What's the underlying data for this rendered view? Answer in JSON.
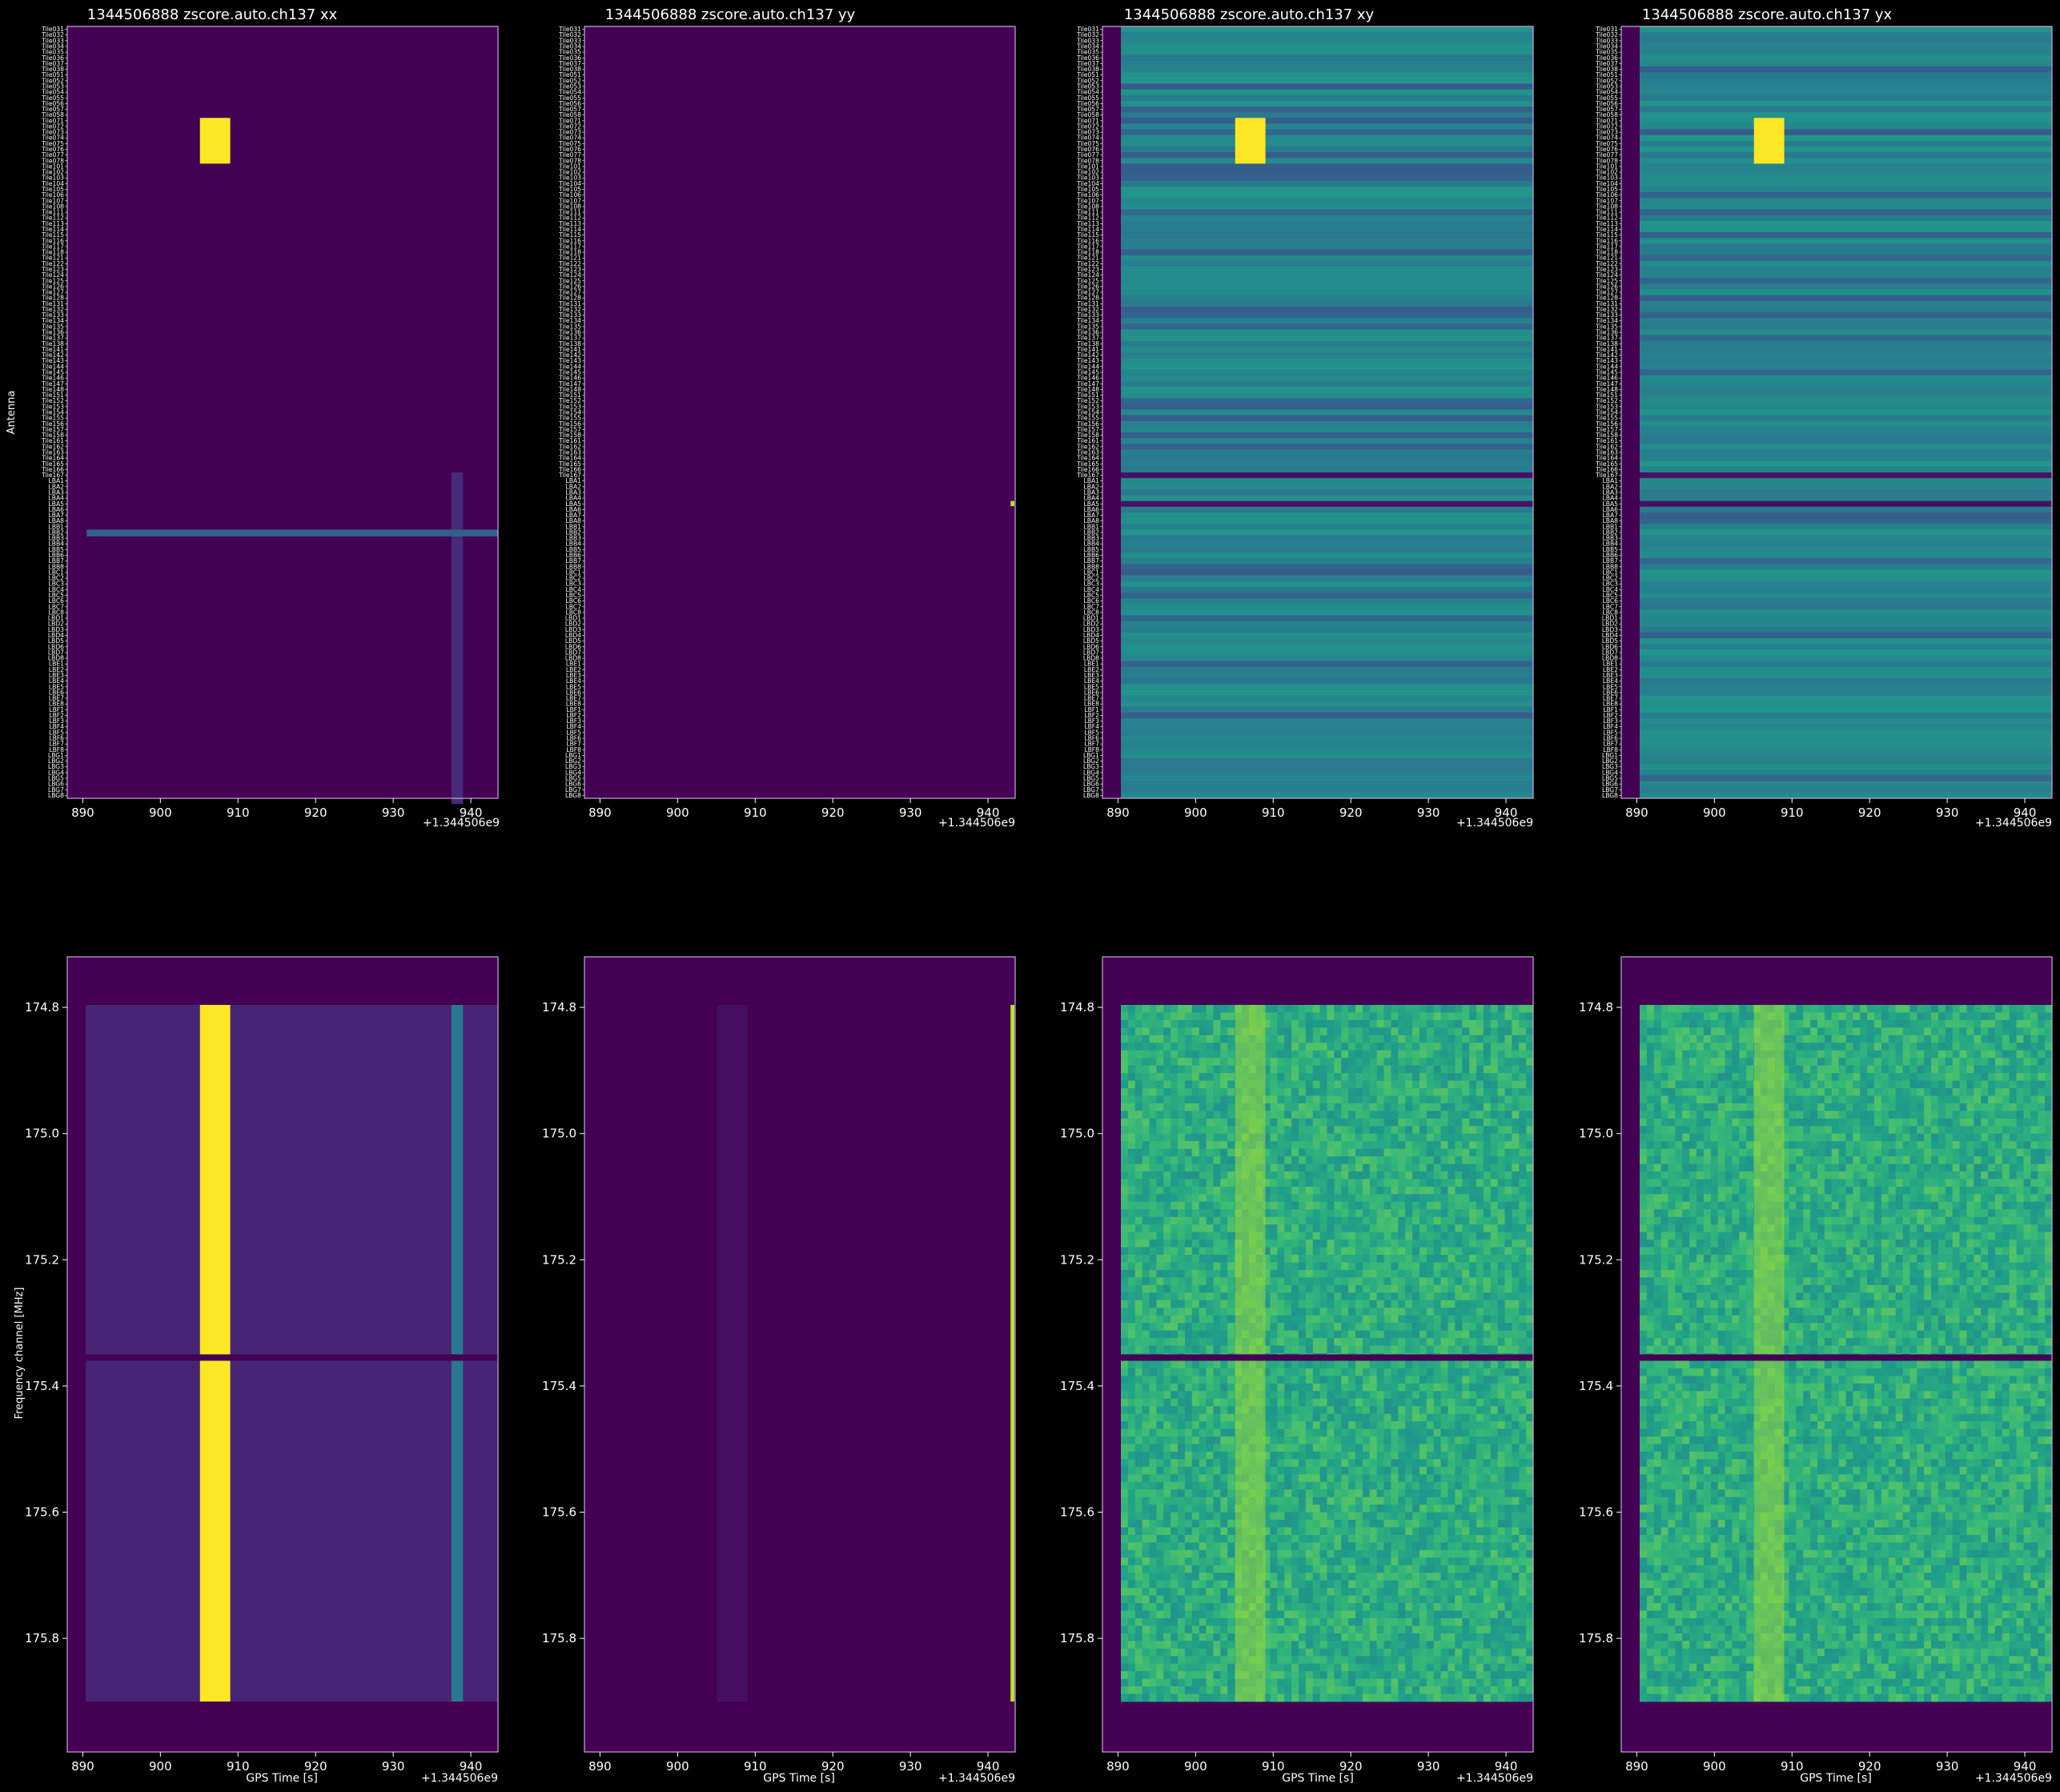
{
  "colors": {
    "background": "#000000",
    "foreground": "#ffffff",
    "spine": "#c8a8e0",
    "viridis_low": "#440154",
    "viridis_mid": "#21918c",
    "viridis_high": "#fde725"
  },
  "chart_data": [
    {
      "type": "heatmap",
      "title": "1344506888 zscore.auto.ch137 xx",
      "ylabel": "Antenna",
      "xlabel": "",
      "x_offset_label": "+1.344506e9",
      "x_ticks": [
        890,
        900,
        910,
        920,
        930,
        940
      ],
      "xlim": [
        888,
        943.5
      ],
      "y_tick_labels": [
        "Tile031",
        "Tile032",
        "Tile033",
        "Tile034",
        "Tile035",
        "Tile036",
        "Tile037",
        "Tile038",
        "Tile051",
        "Tile052",
        "Tile053",
        "Tile054",
        "Tile055",
        "Tile056",
        "Tile057",
        "Tile058",
        "Tile071",
        "Tile072",
        "Tile073",
        "Tile074",
        "Tile075",
        "Tile076",
        "Tile077",
        "Tile078",
        "Tile101",
        "Tile102",
        "Tile103",
        "Tile104",
        "Tile105",
        "Tile106",
        "Tile107",
        "Tile108",
        "Tile111",
        "Tile112",
        "Tile113",
        "Tile114",
        "Tile115",
        "Tile116",
        "Tile117",
        "Tile118",
        "Tile121",
        "Tile122",
        "Tile123",
        "Tile124",
        "Tile125",
        "Tile126",
        "Tile127",
        "Tile128",
        "Tile131",
        "Tile132",
        "Tile133",
        "Tile134",
        "Tile135",
        "Tile136",
        "Tile137",
        "Tile138",
        "Tile141",
        "Tile142",
        "Tile143",
        "Tile144",
        "Tile145",
        "Tile146",
        "Tile147",
        "Tile148",
        "Tile151",
        "Tile152",
        "Tile153",
        "Tile154",
        "Tile155",
        "Tile156",
        "Tile157",
        "Tile158",
        "Tile161",
        "Tile162",
        "Tile163",
        "Tile164",
        "Tile165",
        "Tile166",
        "Tile167",
        "LBA1",
        "LBA2",
        "LBA3",
        "LBA4",
        "LBA5",
        "LBA6",
        "LBA7",
        "LBA8",
        "LBB1",
        "LBB2",
        "LBB3",
        "LBB4",
        "LBB5",
        "LBB6",
        "LBB7",
        "LBB8",
        "LBC1",
        "LBC2",
        "LBC3",
        "LBC4",
        "LBC5",
        "LBC6",
        "LBC7",
        "LBC8",
        "LBD1",
        "LBD2",
        "LBD3",
        "LBD4",
        "LBD5",
        "LBD6",
        "LBD7",
        "LBD8",
        "LBE1",
        "LBE2",
        "LBE3",
        "LBE4",
        "LBE5",
        "LBE6",
        "LBE7",
        "LBE8",
        "LBF1",
        "LBF2",
        "LBF3",
        "LBF4",
        "LBF5",
        "LBF6",
        "LBF7",
        "LBF8",
        "LBG1",
        "LBG2",
        "LBG3",
        "LBG4",
        "LBG5",
        "LBG6",
        "LBG7",
        "LBG8"
      ],
      "colormap": "viridis",
      "features": [
        {
          "kind": "block",
          "x_range": [
            905.1,
            909
          ],
          "row_range": [
            16,
            24
          ],
          "level": 1.0
        },
        {
          "kind": "column_band",
          "x_range": [
            937.5,
            939
          ],
          "row_range": [
            78,
            136
          ],
          "level": 0.12
        },
        {
          "kind": "row_band",
          "row": 88,
          "x_range": [
            890.5,
            943.5
          ],
          "level": 0.3
        }
      ]
    },
    {
      "type": "heatmap",
      "title": "1344506888 zscore.auto.ch137 yy",
      "xlabel": "",
      "x_offset_label": "+1.344506e9",
      "x_ticks": [
        890,
        900,
        910,
        920,
        930,
        940
      ],
      "xlim": [
        888,
        943.5
      ],
      "colormap": "viridis",
      "features": [
        {
          "kind": "cell",
          "x_range": [
            942.9,
            943.4
          ],
          "row": 83,
          "level": 0.9
        }
      ]
    },
    {
      "type": "heatmap",
      "title": "1344506888 zscore.auto.ch137 xy",
      "xlabel": "",
      "x_offset_label": "+1.344506e9",
      "x_ticks": [
        890,
        900,
        910,
        920,
        930,
        940
      ],
      "xlim": [
        888,
        943.5
      ],
      "colormap": "viridis",
      "features": [
        {
          "kind": "block",
          "x_range": [
            905.1,
            909
          ],
          "row_range": [
            16,
            24
          ],
          "level": 1.0
        },
        {
          "kind": "dark_rows",
          "rows": [
            78,
            83
          ]
        }
      ]
    },
    {
      "type": "heatmap",
      "title": "1344506888 zscore.auto.ch137 yx",
      "xlabel": "",
      "x_offset_label": "+1.344506e9",
      "x_ticks": [
        890,
        900,
        910,
        920,
        930,
        940
      ],
      "xlim": [
        888,
        943.5
      ],
      "colormap": "viridis",
      "features": [
        {
          "kind": "block",
          "x_range": [
            905.1,
            909
          ],
          "row_range": [
            16,
            24
          ],
          "level": 1.0
        },
        {
          "kind": "dark_rows",
          "rows": [
            78,
            83
          ]
        }
      ]
    },
    {
      "type": "heatmap",
      "title": "",
      "xlabel": "GPS Time [s]",
      "ylabel": "Frequency channel [MHz]",
      "x_offset_label": "+1.344506e9",
      "x_ticks": [
        890,
        900,
        910,
        920,
        930,
        940
      ],
      "xlim": [
        888,
        943.5
      ],
      "ylim": [
        174.72,
        175.98
      ],
      "y_ticks": [
        "174.8",
        "175.0",
        "175.2",
        "175.4",
        "175.6",
        "175.8"
      ],
      "colormap": "viridis",
      "features": [
        {
          "kind": "column_band",
          "x_range": [
            905.1,
            909
          ],
          "level": 1.0
        },
        {
          "kind": "column_band",
          "x_range": [
            937.5,
            939
          ],
          "level": 0.4
        },
        {
          "kind": "dark_row",
          "freq": 175.355
        }
      ]
    },
    {
      "type": "heatmap",
      "title": "",
      "xlabel": "GPS Time [s]",
      "x_offset_label": "+1.344506e9",
      "x_ticks": [
        890,
        900,
        910,
        920,
        930,
        940
      ],
      "xlim": [
        888,
        943.5
      ],
      "ylim": [
        174.72,
        175.98
      ],
      "y_ticks": [
        "174.8",
        "175.0",
        "175.2",
        "175.4",
        "175.6",
        "175.8"
      ],
      "colormap": "viridis",
      "features": [
        {
          "kind": "column_band",
          "x_range": [
            905.1,
            909
          ],
          "level": 0.04
        },
        {
          "kind": "column_band",
          "x_range": [
            942.9,
            943.4
          ],
          "level": 0.9
        }
      ]
    },
    {
      "type": "heatmap",
      "title": "",
      "xlabel": "GPS Time [s]",
      "x_offset_label": "+1.344506e9",
      "x_ticks": [
        890,
        900,
        910,
        920,
        930,
        940
      ],
      "xlim": [
        888,
        943.5
      ],
      "ylim": [
        174.72,
        175.98
      ],
      "y_ticks": [
        "174.8",
        "175.0",
        "175.2",
        "175.4",
        "175.6",
        "175.8"
      ],
      "colormap": "viridis",
      "features": [
        {
          "kind": "column_band",
          "x_range": [
            905.1,
            909
          ],
          "level": 0.85
        },
        {
          "kind": "dark_row",
          "freq": 175.355
        }
      ]
    },
    {
      "type": "heatmap",
      "title": "",
      "xlabel": "GPS Time [s]",
      "x_offset_label": "+1.344506e9",
      "x_ticks": [
        890,
        900,
        910,
        920,
        930,
        940
      ],
      "xlim": [
        888,
        943.5
      ],
      "ylim": [
        174.72,
        175.98
      ],
      "y_ticks": [
        "174.8",
        "175.0",
        "175.2",
        "175.4",
        "175.6",
        "175.8"
      ],
      "colormap": "viridis",
      "features": [
        {
          "kind": "column_band",
          "x_range": [
            905.1,
            909
          ],
          "level": 0.85
        },
        {
          "kind": "dark_row",
          "freq": 175.355
        }
      ]
    }
  ]
}
